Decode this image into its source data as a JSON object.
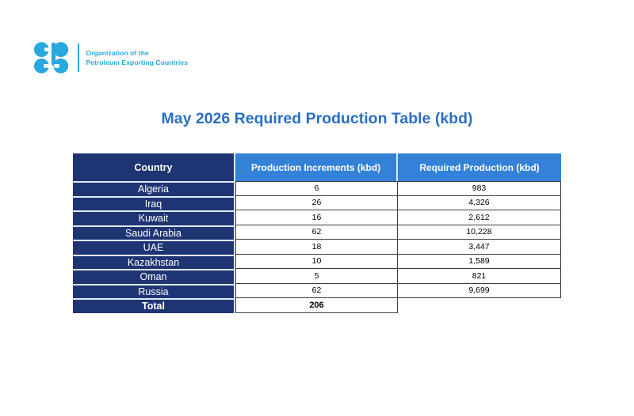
{
  "brand": {
    "org_line1": "Organization of the",
    "org_line2": "Petroleum Exporting Countries"
  },
  "title": "May 2026 Required Production Table (kbd)",
  "table": {
    "columns": [
      "Country",
      "Production Increments (kbd)",
      "Required Production (kbd)"
    ],
    "rows": [
      {
        "country": "Algeria",
        "increments": "6",
        "required": "983"
      },
      {
        "country": "Iraq",
        "increments": "26",
        "required": "4,326"
      },
      {
        "country": "Kuwait",
        "increments": "16",
        "required": "2,612"
      },
      {
        "country": "Saudi Arabia",
        "increments": "62",
        "required": "10,228"
      },
      {
        "country": "UAE",
        "increments": "18",
        "required": "3,447"
      },
      {
        "country": "Kazakhstan",
        "increments": "10",
        "required": "1,589"
      },
      {
        "country": "Oman",
        "increments": "5",
        "required": "821"
      },
      {
        "country": "Russia",
        "increments": "62",
        "required": "9,699"
      }
    ],
    "total_row": {
      "label": "Total",
      "increments": "206",
      "required": ""
    }
  },
  "chart_data": {
    "type": "table",
    "title": "May 2026 Required Production Table (kbd)",
    "columns": [
      "Country",
      "Production Increments (kbd)",
      "Required Production (kbd)"
    ],
    "rows": [
      [
        "Algeria",
        6,
        983
      ],
      [
        "Iraq",
        26,
        4326
      ],
      [
        "Kuwait",
        16,
        2612
      ],
      [
        "Saudi Arabia",
        62,
        10228
      ],
      [
        "UAE",
        18,
        3447
      ],
      [
        "Kazakhstan",
        10,
        1589
      ],
      [
        "Oman",
        5,
        821
      ],
      [
        "Russia",
        62,
        9699
      ]
    ],
    "total": [
      "Total",
      206,
      null
    ]
  },
  "colors": {
    "navy": "#1F3573",
    "header_blue": "#3481D8",
    "title_blue": "#2B6FC2",
    "border_dark": "#3C3C3C",
    "separator_light": "#DFE9F6",
    "logo_blue": "#29A7DF"
  }
}
